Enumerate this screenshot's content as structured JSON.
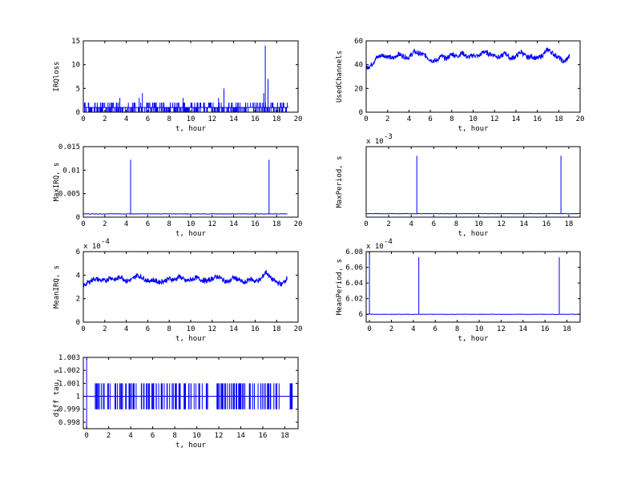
{
  "chart_data": [
    {
      "type": "line",
      "xlabel": "t, hour",
      "ylabel": "IRQloss",
      "xlim": [
        0,
        20
      ],
      "ylim": [
        0,
        15
      ],
      "xticks": [
        "0",
        "2",
        "4",
        "6",
        "8",
        "10",
        "12",
        "14",
        "16",
        "18",
        "20"
      ],
      "yticks": [
        "0",
        "5",
        "10",
        "15"
      ],
      "exponent": "",
      "color": "#0000ff",
      "style": "spiky integer counts",
      "series": [
        {
          "x": [
            0.1,
            19.1
          ],
          "base": 1,
          "spikes": [
            [
              0.5,
              2
            ],
            [
              1.1,
              2
            ],
            [
              1.6,
              2
            ],
            [
              2.3,
              2
            ],
            [
              2.7,
              2
            ],
            [
              3.4,
              3
            ],
            [
              4.6,
              2
            ],
            [
              5.2,
              3
            ],
            [
              5.5,
              4
            ],
            [
              6.1,
              2
            ],
            [
              6.6,
              2
            ],
            [
              7.4,
              2
            ],
            [
              8.1,
              2
            ],
            [
              8.8,
              2
            ],
            [
              9.3,
              3
            ],
            [
              10.1,
              2
            ],
            [
              10.6,
              2
            ],
            [
              11.2,
              2
            ],
            [
              11.9,
              2
            ],
            [
              12.6,
              3
            ],
            [
              13.1,
              5
            ],
            [
              13.8,
              2
            ],
            [
              14.6,
              2
            ],
            [
              15.3,
              2
            ],
            [
              15.9,
              2
            ],
            [
              16.4,
              2
            ],
            [
              16.8,
              4
            ],
            [
              16.95,
              14
            ],
            [
              17.2,
              7
            ],
            [
              17.6,
              2
            ],
            [
              18.1,
              2
            ],
            [
              18.6,
              2
            ],
            [
              19.0,
              2
            ]
          ]
        }
      ]
    },
    {
      "type": "line",
      "xlabel": "t, hour",
      "ylabel": "UsedChannels",
      "xlim": [
        0,
        20
      ],
      "ylim": [
        0,
        60
      ],
      "xticks": [
        "0",
        "2",
        "4",
        "6",
        "8",
        "10",
        "12",
        "14",
        "16",
        "18",
        "20"
      ],
      "yticks": [
        "0",
        "20",
        "40",
        "60"
      ],
      "exponent": "",
      "color": "#0000ff",
      "style": "noisy line",
      "series": [
        {
          "x": [
            0,
            0.5,
            1,
            1.5,
            2,
            2.5,
            3,
            3.5,
            4,
            4.5,
            5,
            5.5,
            6,
            6.5,
            7,
            7.5,
            8,
            8.5,
            9,
            9.5,
            10,
            10.5,
            11,
            11.5,
            12,
            12.5,
            13,
            13.5,
            14,
            14.5,
            15,
            15.5,
            16,
            16.5,
            17,
            17.5,
            18,
            18.5,
            19
          ],
          "values": [
            37,
            40,
            46,
            48,
            47,
            45,
            49,
            47,
            46,
            51,
            49,
            48,
            44,
            43,
            47,
            45,
            49,
            47,
            50,
            46,
            48,
            47,
            51,
            49,
            48,
            46,
            50,
            45,
            47,
            51,
            46,
            47,
            45,
            48,
            53,
            49,
            46,
            42,
            47
          ]
        }
      ]
    },
    {
      "type": "line",
      "xlabel": "t, hour",
      "ylabel": "MaxIRQ, s",
      "xlim": [
        0,
        20
      ],
      "ylim": [
        0,
        0.015
      ],
      "xticks": [
        "0",
        "2",
        "4",
        "6",
        "8",
        "10",
        "12",
        "14",
        "16",
        "18",
        "20"
      ],
      "yticks": [
        "0",
        "0.005",
        "0.01",
        "0.015"
      ],
      "exponent": "",
      "color": "#0000ff",
      "style": "flat line with spikes",
      "series": [
        {
          "x": [
            0,
            19
          ],
          "base": 0.0007,
          "spikes": [
            [
              4.4,
              0.0122
            ],
            [
              17.3,
              0.0122
            ]
          ]
        }
      ]
    },
    {
      "type": "line",
      "xlabel": "t, hour",
      "ylabel": "MaxPeriod, s",
      "xlim": [
        0,
        19
      ],
      "ylim": [
        0,
        0.014
      ],
      "xticks": [
        "0",
        "2",
        "4",
        "6",
        "8",
        "10",
        "12",
        "14",
        "16",
        "18"
      ],
      "yticks": [],
      "exponent": "x 10^-3",
      "color": "#0000ff",
      "style": "flat line with spikes",
      "series": [
        {
          "x": [
            0,
            19
          ],
          "base": 0.0007,
          "spikes": [
            [
              4.5,
              0.0122
            ],
            [
              17.3,
              0.0122
            ]
          ]
        }
      ]
    },
    {
      "type": "line",
      "xlabel": "t, hour",
      "ylabel": "MeanIRQ, s",
      "xlim": [
        0,
        20
      ],
      "ylim": [
        0,
        6
      ],
      "xticks": [
        "0",
        "2",
        "4",
        "6",
        "8",
        "10",
        "12",
        "14",
        "16",
        "18",
        "20"
      ],
      "yticks": [
        "0",
        "2",
        "4",
        "6"
      ],
      "exponent": "x 10^-4",
      "color": "#0000ff",
      "style": "noisy line",
      "series": [
        {
          "x": [
            0,
            0.5,
            1,
            1.5,
            2,
            2.5,
            3,
            3.5,
            4,
            4.5,
            5,
            5.5,
            6,
            6.5,
            7,
            7.5,
            8,
            8.5,
            9,
            9.5,
            10,
            10.5,
            11,
            11.5,
            12,
            12.5,
            13,
            13.5,
            14,
            14.5,
            15,
            15.5,
            16,
            16.5,
            17,
            17.5,
            18,
            18.5,
            19
          ],
          "values": [
            3.1,
            3.4,
            3.7,
            3.6,
            3.5,
            3.8,
            3.6,
            3.9,
            3.5,
            3.6,
            4.0,
            3.8,
            3.5,
            3.6,
            3.4,
            3.5,
            3.7,
            3.6,
            3.9,
            3.5,
            3.6,
            3.8,
            3.6,
            3.5,
            3.7,
            3.9,
            3.6,
            3.4,
            3.8,
            3.6,
            3.3,
            3.7,
            3.5,
            3.6,
            4.3,
            3.7,
            3.4,
            3.2,
            3.8
          ]
        }
      ]
    },
    {
      "type": "line",
      "xlabel": "t, hour",
      "ylabel": "MeanPeriod, s",
      "xlim": [
        -0.3,
        19.2
      ],
      "ylim": [
        5.99,
        6.08
      ],
      "xticks": [
        "0",
        "2",
        "4",
        "6",
        "8",
        "10",
        "12",
        "14",
        "16",
        "18"
      ],
      "yticks": [
        "6",
        "6.02",
        "6.04",
        "6.06",
        "6.08"
      ],
      "exponent": "x 10^-4",
      "color": "#0000ff",
      "style": "flat line with spikes",
      "series": [
        {
          "x": [
            -0.3,
            19.2
          ],
          "base": 6.0,
          "spikes": [
            [
              0,
              6.08
            ],
            [
              4.5,
              6.073
            ],
            [
              17.3,
              6.073
            ]
          ]
        }
      ]
    },
    {
      "type": "line",
      "xlabel": "t, hour",
      "ylabel": "diff tau, s",
      "xlim": [
        -0.3,
        19.2
      ],
      "ylim": [
        0.9975,
        1.003
      ],
      "xticks": [
        "0",
        "2",
        "4",
        "6",
        "8",
        "10",
        "12",
        "14",
        "16",
        "18"
      ],
      "yticks": [
        "0.998",
        "0.999",
        "1",
        "1.001",
        "1.002",
        "1.003"
      ],
      "exponent": "",
      "color": "#0000ff",
      "style": "oscillating bars",
      "series": [
        {
          "x": [
            -0.3,
            19.2
          ],
          "base": 1.0,
          "hi": 1.001,
          "lo": 0.999,
          "edge": [
            0,
            0.9975,
            1.003
          ]
        }
      ]
    }
  ]
}
